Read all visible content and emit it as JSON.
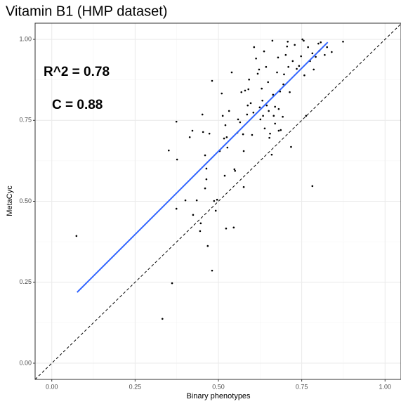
{
  "chart_data": {
    "type": "scatter",
    "title": "Vitamin B1 (HMP dataset)",
    "x_label": "Binary phenotypes",
    "y_label": "MetaCyc",
    "annotations": [
      "R^2 = 0.78",
      "C = 0.88"
    ],
    "xlim": [
      -0.05,
      1.05
    ],
    "ylim": [
      -0.05,
      1.05
    ],
    "xticks": [
      {
        "value": 0,
        "label": "0.00"
      },
      {
        "value": 0.25,
        "label": "0.25"
      },
      {
        "value": 0.5,
        "label": "0.50"
      },
      {
        "value": 0.75,
        "label": "0.75"
      },
      {
        "value": 1,
        "label": "1.00"
      }
    ],
    "yticks": [
      {
        "value": 0,
        "label": "0.00"
      },
      {
        "value": 0.25,
        "label": "0.25"
      },
      {
        "value": 0.5,
        "label": "0.50"
      },
      {
        "value": 0.75,
        "label": "0.75"
      },
      {
        "value": 1,
        "label": "1.00"
      }
    ],
    "grid": true,
    "color": "#000000",
    "fit": {
      "color": "#3366ff",
      "x": [
        0.076,
        0.828
      ],
      "y": [
        0.219,
        0.991
      ]
    },
    "x": [
      0.074,
      0.332,
      0.361,
      0.351,
      0.374,
      0.376,
      0.374,
      0.401,
      0.414,
      0.422,
      0.424,
      0.435,
      0.447,
      0.445,
      0.452,
      0.454,
      0.46,
      0.464,
      0.46,
      0.464,
      0.468,
      0.473,
      0.481,
      0.481,
      0.487,
      0.492,
      0.496,
      0.504,
      0.51,
      0.513,
      0.517,
      0.519,
      0.521,
      0.523,
      0.525,
      0.527,
      0.532,
      0.54,
      0.546,
      0.548,
      0.55,
      0.557,
      0.559,
      0.565,
      0.569,
      0.574,
      0.576,
      0.576,
      0.58,
      0.586,
      0.588,
      0.59,
      0.592,
      0.597,
      0.601,
      0.605,
      0.607,
      0.613,
      0.618,
      0.622,
      0.624,
      0.626,
      0.63,
      0.632,
      0.634,
      0.637,
      0.639,
      0.643,
      0.645,
      0.649,
      0.651,
      0.653,
      0.655,
      0.66,
      0.662,
      0.664,
      0.666,
      0.67,
      0.67,
      0.676,
      0.679,
      0.681,
      0.685,
      0.687,
      0.693,
      0.695,
      0.697,
      0.702,
      0.706,
      0.708,
      0.71,
      0.714,
      0.718,
      0.723,
      0.729,
      0.735,
      0.742,
      0.748,
      0.752,
      0.756,
      0.758,
      0.763,
      0.769,
      0.775,
      0.782,
      0.782,
      0.786,
      0.792,
      0.8,
      0.803,
      0.807,
      0.819,
      0.826,
      0.84,
      0.874,
      0.681
    ],
    "y": [
      0.393,
      0.137,
      0.247,
      0.657,
      0.746,
      0.629,
      0.477,
      0.503,
      0.698,
      0.718,
      0.458,
      0.503,
      0.432,
      0.408,
      0.768,
      0.714,
      0.642,
      0.568,
      0.54,
      0.601,
      0.362,
      0.709,
      0.872,
      0.286,
      0.501,
      0.471,
      0.505,
      0.655,
      0.833,
      0.764,
      0.694,
      0.579,
      0.735,
      0.416,
      0.698,
      0.666,
      0.779,
      0.898,
      0.419,
      0.599,
      0.594,
      0.712,
      0.753,
      0.744,
      0.837,
      0.707,
      0.544,
      0.655,
      0.842,
      0.768,
      0.796,
      0.846,
      0.876,
      0.803,
      0.705,
      0.774,
      0.976,
      0.941,
      0.894,
      0.907,
      0.79,
      0.753,
      0.848,
      0.811,
      0.764,
      0.963,
      0.725,
      0.915,
      0.796,
      0.868,
      0.779,
      0.696,
      0.709,
      0.644,
      0.996,
      0.829,
      0.764,
      0.792,
      0.74,
      0.898,
      0.944,
      0.785,
      0.839,
      0.72,
      0.761,
      0.861,
      0.892,
      0.952,
      0.978,
      0.993,
      0.915,
      0.837,
      0.668,
      0.933,
      0.983,
      0.909,
      0.918,
      0.948,
      1.0,
      0.996,
      0.889,
      0.764,
      0.976,
      0.933,
      0.957,
      0.547,
      0.907,
      0.946,
      0.987,
      0.965,
      0.991,
      0.952,
      0.976,
      0.961,
      0.993,
      0.718
    ]
  }
}
